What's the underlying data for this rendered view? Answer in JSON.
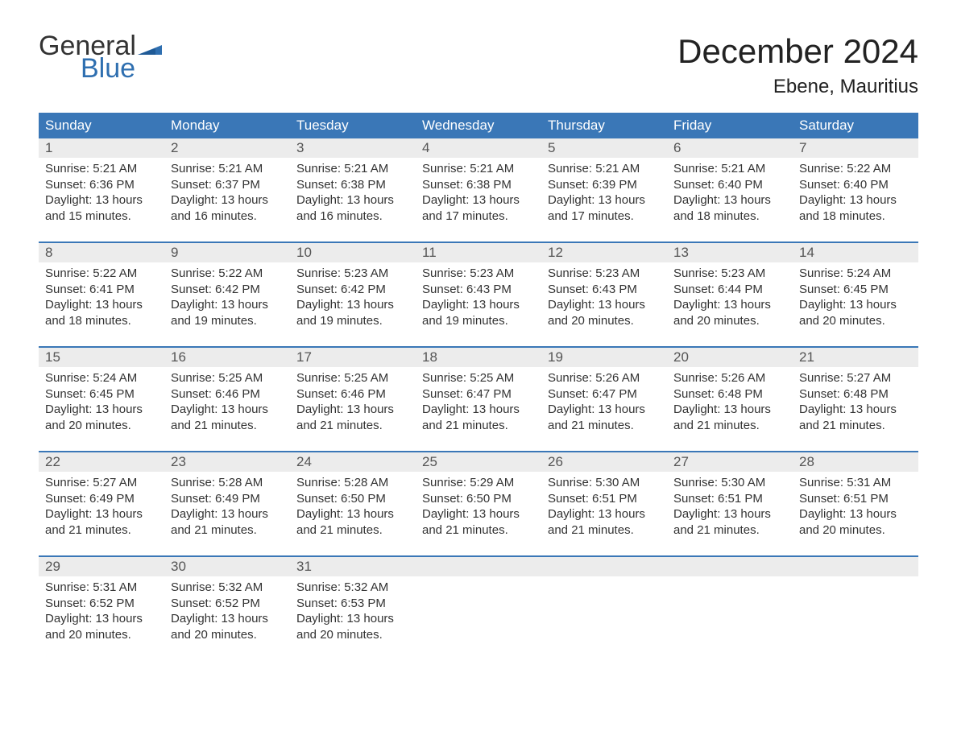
{
  "logo": {
    "general": "General",
    "blue": "Blue",
    "flag_color": "#2f6fb0"
  },
  "title": "December 2024",
  "location": "Ebene, Mauritius",
  "colors": {
    "header_bg": "#3a77b7",
    "header_text": "#ffffff",
    "daynum_bg": "#ececec",
    "week_border": "#3a77b7",
    "text": "#333333",
    "logo_blue": "#2f6fb0"
  },
  "day_names": [
    "Sunday",
    "Monday",
    "Tuesday",
    "Wednesday",
    "Thursday",
    "Friday",
    "Saturday"
  ],
  "labels": {
    "sunrise": "Sunrise:",
    "sunset": "Sunset:",
    "daylight": "Daylight:"
  },
  "weeks": [
    [
      {
        "n": "1",
        "sr": "5:21 AM",
        "ss": "6:36 PM",
        "dl": "13 hours and 15 minutes."
      },
      {
        "n": "2",
        "sr": "5:21 AM",
        "ss": "6:37 PM",
        "dl": "13 hours and 16 minutes."
      },
      {
        "n": "3",
        "sr": "5:21 AM",
        "ss": "6:38 PM",
        "dl": "13 hours and 16 minutes."
      },
      {
        "n": "4",
        "sr": "5:21 AM",
        "ss": "6:38 PM",
        "dl": "13 hours and 17 minutes."
      },
      {
        "n": "5",
        "sr": "5:21 AM",
        "ss": "6:39 PM",
        "dl": "13 hours and 17 minutes."
      },
      {
        "n": "6",
        "sr": "5:21 AM",
        "ss": "6:40 PM",
        "dl": "13 hours and 18 minutes."
      },
      {
        "n": "7",
        "sr": "5:22 AM",
        "ss": "6:40 PM",
        "dl": "13 hours and 18 minutes."
      }
    ],
    [
      {
        "n": "8",
        "sr": "5:22 AM",
        "ss": "6:41 PM",
        "dl": "13 hours and 18 minutes."
      },
      {
        "n": "9",
        "sr": "5:22 AM",
        "ss": "6:42 PM",
        "dl": "13 hours and 19 minutes."
      },
      {
        "n": "10",
        "sr": "5:23 AM",
        "ss": "6:42 PM",
        "dl": "13 hours and 19 minutes."
      },
      {
        "n": "11",
        "sr": "5:23 AM",
        "ss": "6:43 PM",
        "dl": "13 hours and 19 minutes."
      },
      {
        "n": "12",
        "sr": "5:23 AM",
        "ss": "6:43 PM",
        "dl": "13 hours and 20 minutes."
      },
      {
        "n": "13",
        "sr": "5:23 AM",
        "ss": "6:44 PM",
        "dl": "13 hours and 20 minutes."
      },
      {
        "n": "14",
        "sr": "5:24 AM",
        "ss": "6:45 PM",
        "dl": "13 hours and 20 minutes."
      }
    ],
    [
      {
        "n": "15",
        "sr": "5:24 AM",
        "ss": "6:45 PM",
        "dl": "13 hours and 20 minutes."
      },
      {
        "n": "16",
        "sr": "5:25 AM",
        "ss": "6:46 PM",
        "dl": "13 hours and 21 minutes."
      },
      {
        "n": "17",
        "sr": "5:25 AM",
        "ss": "6:46 PM",
        "dl": "13 hours and 21 minutes."
      },
      {
        "n": "18",
        "sr": "5:25 AM",
        "ss": "6:47 PM",
        "dl": "13 hours and 21 minutes."
      },
      {
        "n": "19",
        "sr": "5:26 AM",
        "ss": "6:47 PM",
        "dl": "13 hours and 21 minutes."
      },
      {
        "n": "20",
        "sr": "5:26 AM",
        "ss": "6:48 PM",
        "dl": "13 hours and 21 minutes."
      },
      {
        "n": "21",
        "sr": "5:27 AM",
        "ss": "6:48 PM",
        "dl": "13 hours and 21 minutes."
      }
    ],
    [
      {
        "n": "22",
        "sr": "5:27 AM",
        "ss": "6:49 PM",
        "dl": "13 hours and 21 minutes."
      },
      {
        "n": "23",
        "sr": "5:28 AM",
        "ss": "6:49 PM",
        "dl": "13 hours and 21 minutes."
      },
      {
        "n": "24",
        "sr": "5:28 AM",
        "ss": "6:50 PM",
        "dl": "13 hours and 21 minutes."
      },
      {
        "n": "25",
        "sr": "5:29 AM",
        "ss": "6:50 PM",
        "dl": "13 hours and 21 minutes."
      },
      {
        "n": "26",
        "sr": "5:30 AM",
        "ss": "6:51 PM",
        "dl": "13 hours and 21 minutes."
      },
      {
        "n": "27",
        "sr": "5:30 AM",
        "ss": "6:51 PM",
        "dl": "13 hours and 21 minutes."
      },
      {
        "n": "28",
        "sr": "5:31 AM",
        "ss": "6:51 PM",
        "dl": "13 hours and 20 minutes."
      }
    ],
    [
      {
        "n": "29",
        "sr": "5:31 AM",
        "ss": "6:52 PM",
        "dl": "13 hours and 20 minutes."
      },
      {
        "n": "30",
        "sr": "5:32 AM",
        "ss": "6:52 PM",
        "dl": "13 hours and 20 minutes."
      },
      {
        "n": "31",
        "sr": "5:32 AM",
        "ss": "6:53 PM",
        "dl": "13 hours and 20 minutes."
      },
      null,
      null,
      null,
      null
    ]
  ]
}
